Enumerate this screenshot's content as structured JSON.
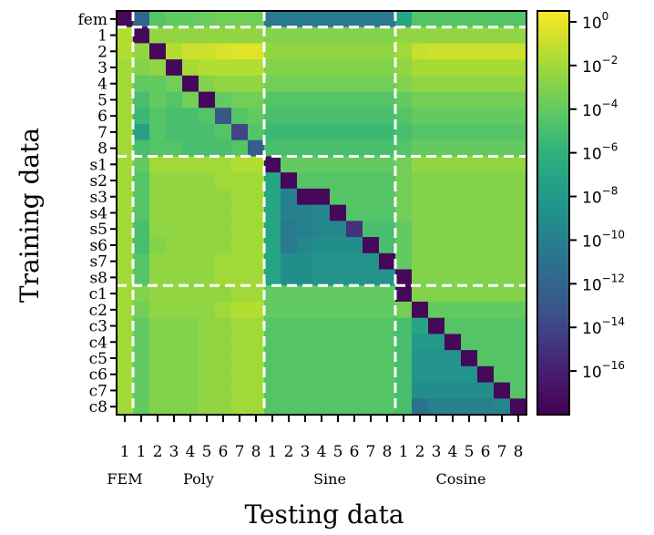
{
  "chart_data": {
    "type": "heatmap",
    "title": "",
    "xlabel": "Testing data",
    "ylabel": "Training data",
    "row_labels": [
      "fem",
      "1",
      "2",
      "3",
      "4",
      "5",
      "6",
      "7",
      "8",
      "s1",
      "s2",
      "s3",
      "s4",
      "s5",
      "s6",
      "s7",
      "s8",
      "c1",
      "c2",
      "c3",
      "c4",
      "c5",
      "c6",
      "c7",
      "c8"
    ],
    "col_labels": [
      "1",
      "1",
      "2",
      "3",
      "4",
      "5",
      "6",
      "7",
      "8",
      "1",
      "2",
      "3",
      "4",
      "5",
      "6",
      "7",
      "8",
      "1",
      "2",
      "3",
      "4",
      "5",
      "6",
      "7",
      "8"
    ],
    "column_groups": [
      {
        "name": "FEM",
        "count": 1
      },
      {
        "name": "Poly",
        "count": 8
      },
      {
        "name": "Sine",
        "count": 8
      },
      {
        "name": "Cosine",
        "count": 8
      }
    ],
    "color_scale": {
      "type": "log10",
      "cmap": "viridis",
      "min_exp": -18,
      "max_exp": 0.5
    },
    "colorbar_ticks": [
      {
        "base": "10",
        "exp": "0"
      },
      {
        "base": "10",
        "exp": "−2"
      },
      {
        "base": "10",
        "exp": "−4"
      },
      {
        "base": "10",
        "exp": "−6"
      },
      {
        "base": "10",
        "exp": "−8"
      },
      {
        "base": "10",
        "exp": "−10"
      },
      {
        "base": "10",
        "exp": "−12"
      },
      {
        "base": "10",
        "exp": "−14"
      },
      {
        "base": "10",
        "exp": "−16"
      }
    ],
    "colorbar_tick_values": [
      0,
      -2,
      -4,
      -6,
      -8,
      -10,
      -12,
      -14,
      -16
    ],
    "values_log10": [
      [
        -17.5,
        -12,
        -4.5,
        -4,
        -4,
        -3.7,
        -3.5,
        -3.5,
        -3.5,
        -10.5,
        -10.5,
        -10.5,
        -10.5,
        -10.5,
        -10.5,
        -10.5,
        -10.5,
        -7,
        -4.5,
        -4.5,
        -4.5,
        -4.5,
        -4.5,
        -4.5,
        -4.5
      ],
      [
        -1.5,
        -17.5,
        -2.5,
        -2.5,
        -2.5,
        -2.5,
        -2.5,
        -2.5,
        -2.5,
        -3,
        -3,
        -3,
        -3,
        -3,
        -3,
        -3,
        -3,
        -2.5,
        -2.5,
        -2.5,
        -2.5,
        -2.5,
        -2.5,
        -2.5,
        -2.5
      ],
      [
        -1.5,
        -2.5,
        -17.5,
        -1.5,
        -0.8,
        -0.8,
        -0.5,
        -0.3,
        -0.3,
        -2.5,
        -2.5,
        -2.5,
        -2.5,
        -2.5,
        -2.5,
        -2.5,
        -2.5,
        -2,
        -1,
        -0.8,
        -0.8,
        -0.8,
        -0.8,
        -0.8,
        -0.8
      ],
      [
        -2,
        -3,
        -2.5,
        -17.5,
        -1.8,
        -1.5,
        -1.5,
        -1.5,
        -1.5,
        -3,
        -3,
        -3,
        -3,
        -3,
        -3,
        -3,
        -3,
        -2.5,
        -1.8,
        -1.8,
        -1.8,
        -1.8,
        -1.8,
        -1.8,
        -1.8
      ],
      [
        -2,
        -4,
        -4,
        -3.5,
        -17.5,
        -3,
        -2.5,
        -2.5,
        -2.5,
        -3.5,
        -3.5,
        -3.5,
        -3.5,
        -3.5,
        -3.5,
        -3.5,
        -3.5,
        -3,
        -2.5,
        -2.5,
        -2.5,
        -2.5,
        -2.5,
        -2.5,
        -2.5
      ],
      [
        -2,
        -5,
        -4,
        -4.5,
        -3.5,
        -17.5,
        -4,
        -3.5,
        -3.5,
        -4.5,
        -4.5,
        -4.5,
        -4.5,
        -4.5,
        -4.5,
        -4.5,
        -4.5,
        -4,
        -3.5,
        -3.5,
        -3.5,
        -3.5,
        -3.5,
        -3.5,
        -3.5
      ],
      [
        -2,
        -5.5,
        -4.5,
        -5,
        -5,
        -4.5,
        -13,
        -4.5,
        -4,
        -5,
        -5,
        -5,
        -5,
        -5,
        -5,
        -5,
        -5,
        -4.5,
        -4,
        -4,
        -4,
        -4,
        -4,
        -4,
        -4
      ],
      [
        -2,
        -7.5,
        -4.5,
        -5,
        -5,
        -5,
        -4.5,
        -14,
        -4.5,
        -5.5,
        -5.5,
        -5.5,
        -5.5,
        -5.5,
        -5.5,
        -5.5,
        -5.5,
        -5,
        -4.5,
        -4.5,
        -4.5,
        -4.5,
        -4.5,
        -4.5,
        -4.5
      ],
      [
        -2,
        -5,
        -4.5,
        -4.5,
        -5,
        -5,
        -5,
        -4.5,
        -12.5,
        -5,
        -5,
        -5,
        -5,
        -5,
        -5,
        -5,
        -5,
        -4.5,
        -4,
        -4,
        -4,
        -4,
        -4,
        -4,
        -4
      ],
      [
        -2,
        -4,
        -2,
        -2,
        -2,
        -2,
        -2,
        -1.5,
        -1.5,
        -17.5,
        -4,
        -4,
        -4,
        -4,
        -4,
        -4,
        -4,
        -3.5,
        -2.5,
        -2.5,
        -2.5,
        -2.5,
        -2.5,
        -2.5,
        -2.5
      ],
      [
        -2,
        -4.5,
        -2.5,
        -2.5,
        -2.5,
        -2.5,
        -2,
        -2,
        -2,
        -7,
        -17.5,
        -4.5,
        -4.5,
        -4.5,
        -4.5,
        -4.5,
        -4.5,
        -3.5,
        -3,
        -3,
        -3,
        -3,
        -3,
        -3,
        -3
      ],
      [
        -2,
        -4.5,
        -2.5,
        -2.5,
        -2.5,
        -2.5,
        -2.5,
        -2,
        -2,
        -7,
        -10,
        -17.5,
        -17.5,
        -4.5,
        -4.5,
        -4.5,
        -4.5,
        -3.5,
        -3,
        -3,
        -3,
        -3,
        -3,
        -3,
        -3
      ],
      [
        -2,
        -4.5,
        -2.5,
        -2.5,
        -2.5,
        -2.5,
        -2.5,
        -2,
        -2,
        -7,
        -10,
        -10,
        -9.5,
        -17.5,
        -4.5,
        -4.5,
        -4.5,
        -3.5,
        -3,
        -3,
        -3,
        -3,
        -3,
        -3,
        -3
      ],
      [
        -2,
        -5,
        -2.5,
        -2.5,
        -2.5,
        -2.5,
        -2.5,
        -2,
        -2,
        -7,
        -10.5,
        -10,
        -9.5,
        -9.5,
        -15,
        -5,
        -5,
        -4,
        -3,
        -3,
        -3,
        -3,
        -3,
        -3,
        -3
      ],
      [
        -2,
        -5,
        -3,
        -2.5,
        -2.5,
        -2.5,
        -2.5,
        -2,
        -2,
        -7,
        -10.5,
        -9.5,
        -9,
        -9,
        -9,
        -17.5,
        -5,
        -4,
        -3,
        -3,
        -3,
        -3,
        -3,
        -3,
        -3
      ],
      [
        -2,
        -4.5,
        -2.5,
        -2.5,
        -2.5,
        -2.5,
        -2,
        -2,
        -2,
        -7,
        -9,
        -9,
        -8.5,
        -8.5,
        -8.5,
        -8.5,
        -17.5,
        -4,
        -3,
        -3,
        -3,
        -3,
        -3,
        -3,
        -3
      ],
      [
        -2,
        -4.5,
        -2.5,
        -2.5,
        -2.5,
        -2.5,
        -2,
        -2,
        -2,
        -7,
        -9,
        -9,
        -8.5,
        -8.5,
        -8.5,
        -8.5,
        -8.5,
        -17.5,
        -3,
        -3,
        -3,
        -3,
        -3,
        -3,
        -3
      ],
      [
        -2,
        -3,
        -2.5,
        -2.5,
        -2.5,
        -2.5,
        -2.5,
        -2,
        -2,
        -4,
        -4,
        -4,
        -4,
        -4,
        -4,
        -4,
        -4,
        -17.5,
        -3,
        -3,
        -3,
        -3,
        -3,
        -3,
        -3
      ],
      [
        -2,
        -3.5,
        -2.5,
        -2.5,
        -2.5,
        -2.5,
        -2,
        -1.5,
        -1.5,
        -4,
        -4,
        -4,
        -4,
        -4,
        -4,
        -4,
        -4,
        -3.5,
        -17.5,
        -4,
        -4,
        -4,
        -4,
        -4,
        -4
      ],
      [
        -2,
        -4,
        -3,
        -3,
        -3,
        -2.5,
        -2.5,
        -2,
        -2,
        -4.5,
        -4.5,
        -4.5,
        -4.5,
        -4.5,
        -4.5,
        -4.5,
        -4.5,
        -5,
        -7,
        -17.5,
        -4.5,
        -4.5,
        -4.5,
        -4.5,
        -4.5
      ],
      [
        -2,
        -4,
        -3,
        -3,
        -3,
        -2.5,
        -2.5,
        -2,
        -2,
        -4.5,
        -4.5,
        -4.5,
        -4.5,
        -4.5,
        -4.5,
        -4.5,
        -4.5,
        -5,
        -8,
        -8,
        -17.5,
        -4.5,
        -4.5,
        -4.5,
        -4.5
      ],
      [
        -2,
        -4,
        -3,
        -3,
        -3,
        -2.5,
        -2.5,
        -2,
        -2,
        -4.5,
        -4.5,
        -4.5,
        -4.5,
        -4.5,
        -4.5,
        -4.5,
        -4.5,
        -5,
        -8.5,
        -8.5,
        -8.5,
        -17.5,
        -4.5,
        -4.5,
        -4.5
      ],
      [
        -2,
        -4,
        -3,
        -3,
        -3,
        -2.5,
        -2.5,
        -2,
        -2,
        -4.5,
        -4.5,
        -4.5,
        -4.5,
        -4.5,
        -4.5,
        -4.5,
        -4.5,
        -5,
        -8.5,
        -8.5,
        -8.5,
        -8.5,
        -17.5,
        -4.5,
        -4.5
      ],
      [
        -2,
        -4,
        -3,
        -3,
        -3,
        -2.5,
        -2.5,
        -2,
        -2,
        -4.5,
        -4.5,
        -4.5,
        -4.5,
        -4.5,
        -4.5,
        -4.5,
        -4.5,
        -5,
        -9,
        -9,
        -9,
        -9,
        -9,
        -17.5,
        -4.5
      ],
      [
        -2,
        -4,
        -3,
        -3,
        -3,
        -2.5,
        -2.5,
        -2,
        -2,
        -4.5,
        -4.5,
        -4.5,
        -4.5,
        -4.5,
        -4.5,
        -4.5,
        -4.5,
        -5,
        -11,
        -10,
        -10,
        -10,
        -10,
        -9.5,
        -17.5
      ]
    ],
    "separators_after_index": [
      0,
      8,
      16
    ]
  }
}
